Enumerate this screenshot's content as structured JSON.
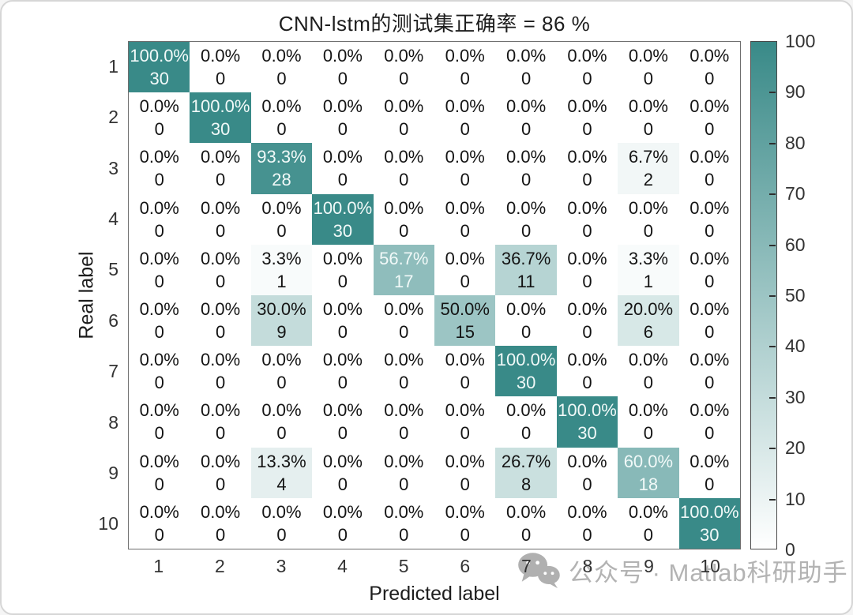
{
  "title": "CNN-lstm的测试集正确率 = 86 %",
  "watermark": {
    "text": "公众号 · Matlab科研助手",
    "icon": "wechat-icon"
  },
  "chart_data": {
    "type": "heatmap",
    "subtype": "confusion-matrix",
    "title": "CNN-lstm的测试集正确率 = 86 %",
    "xlabel": "Predicted label",
    "ylabel": "Real label",
    "x_ticks": [
      "1",
      "2",
      "3",
      "4",
      "5",
      "6",
      "7",
      "8",
      "9",
      "10"
    ],
    "y_ticks": [
      "1",
      "2",
      "3",
      "4",
      "5",
      "6",
      "7",
      "8",
      "9",
      "10"
    ],
    "row_total": 30,
    "counts": [
      [
        30,
        0,
        0,
        0,
        0,
        0,
        0,
        0,
        0,
        0
      ],
      [
        0,
        30,
        0,
        0,
        0,
        0,
        0,
        0,
        0,
        0
      ],
      [
        0,
        0,
        28,
        0,
        0,
        0,
        0,
        0,
        2,
        0
      ],
      [
        0,
        0,
        0,
        30,
        0,
        0,
        0,
        0,
        0,
        0
      ],
      [
        0,
        0,
        1,
        0,
        17,
        0,
        11,
        0,
        1,
        0
      ],
      [
        0,
        0,
        9,
        0,
        0,
        15,
        0,
        0,
        6,
        0
      ],
      [
        0,
        0,
        0,
        0,
        0,
        0,
        30,
        0,
        0,
        0
      ],
      [
        0,
        0,
        0,
        0,
        0,
        0,
        0,
        30,
        0,
        0
      ],
      [
        0,
        0,
        4,
        0,
        0,
        0,
        8,
        0,
        18,
        0
      ],
      [
        0,
        0,
        0,
        0,
        0,
        0,
        0,
        0,
        0,
        30
      ]
    ],
    "percent_labels": [
      [
        "100.0%",
        "0.0%",
        "0.0%",
        "0.0%",
        "0.0%",
        "0.0%",
        "0.0%",
        "0.0%",
        "0.0%",
        "0.0%"
      ],
      [
        "0.0%",
        "100.0%",
        "0.0%",
        "0.0%",
        "0.0%",
        "0.0%",
        "0.0%",
        "0.0%",
        "0.0%",
        "0.0%"
      ],
      [
        "0.0%",
        "0.0%",
        "93.3%",
        "0.0%",
        "0.0%",
        "0.0%",
        "0.0%",
        "0.0%",
        "6.7%",
        "0.0%"
      ],
      [
        "0.0%",
        "0.0%",
        "0.0%",
        "100.0%",
        "0.0%",
        "0.0%",
        "0.0%",
        "0.0%",
        "0.0%",
        "0.0%"
      ],
      [
        "0.0%",
        "0.0%",
        "3.3%",
        "0.0%",
        "56.7%",
        "0.0%",
        "36.7%",
        "0.0%",
        "3.3%",
        "0.0%"
      ],
      [
        "0.0%",
        "0.0%",
        "30.0%",
        "0.0%",
        "0.0%",
        "50.0%",
        "0.0%",
        "0.0%",
        "20.0%",
        "0.0%"
      ],
      [
        "0.0%",
        "0.0%",
        "0.0%",
        "0.0%",
        "0.0%",
        "0.0%",
        "100.0%",
        "0.0%",
        "0.0%",
        "0.0%"
      ],
      [
        "0.0%",
        "0.0%",
        "0.0%",
        "0.0%",
        "0.0%",
        "0.0%",
        "0.0%",
        "100.0%",
        "0.0%",
        "0.0%"
      ],
      [
        "0.0%",
        "0.0%",
        "13.3%",
        "0.0%",
        "0.0%",
        "0.0%",
        "26.7%",
        "0.0%",
        "60.0%",
        "0.0%"
      ],
      [
        "0.0%",
        "0.0%",
        "0.0%",
        "0.0%",
        "0.0%",
        "0.0%",
        "0.0%",
        "0.0%",
        "0.0%",
        "100.0%"
      ]
    ],
    "colorbar": {
      "min": 0,
      "max": 100,
      "ticks": [
        0,
        10,
        20,
        30,
        40,
        50,
        60,
        70,
        80,
        90,
        100
      ],
      "low_color": "#ffffff",
      "high_color": "#398a88"
    },
    "grid": false,
    "legend_position": "right-colorbar"
  },
  "colors": {
    "accent_teal": "#398a88",
    "cell_text_dark": "#141414",
    "cell_text_light": "#f1f9f8",
    "axis_box": "#6e6e6e",
    "tick_label": "#333333",
    "watermark_gray": "#b3b3b3"
  }
}
